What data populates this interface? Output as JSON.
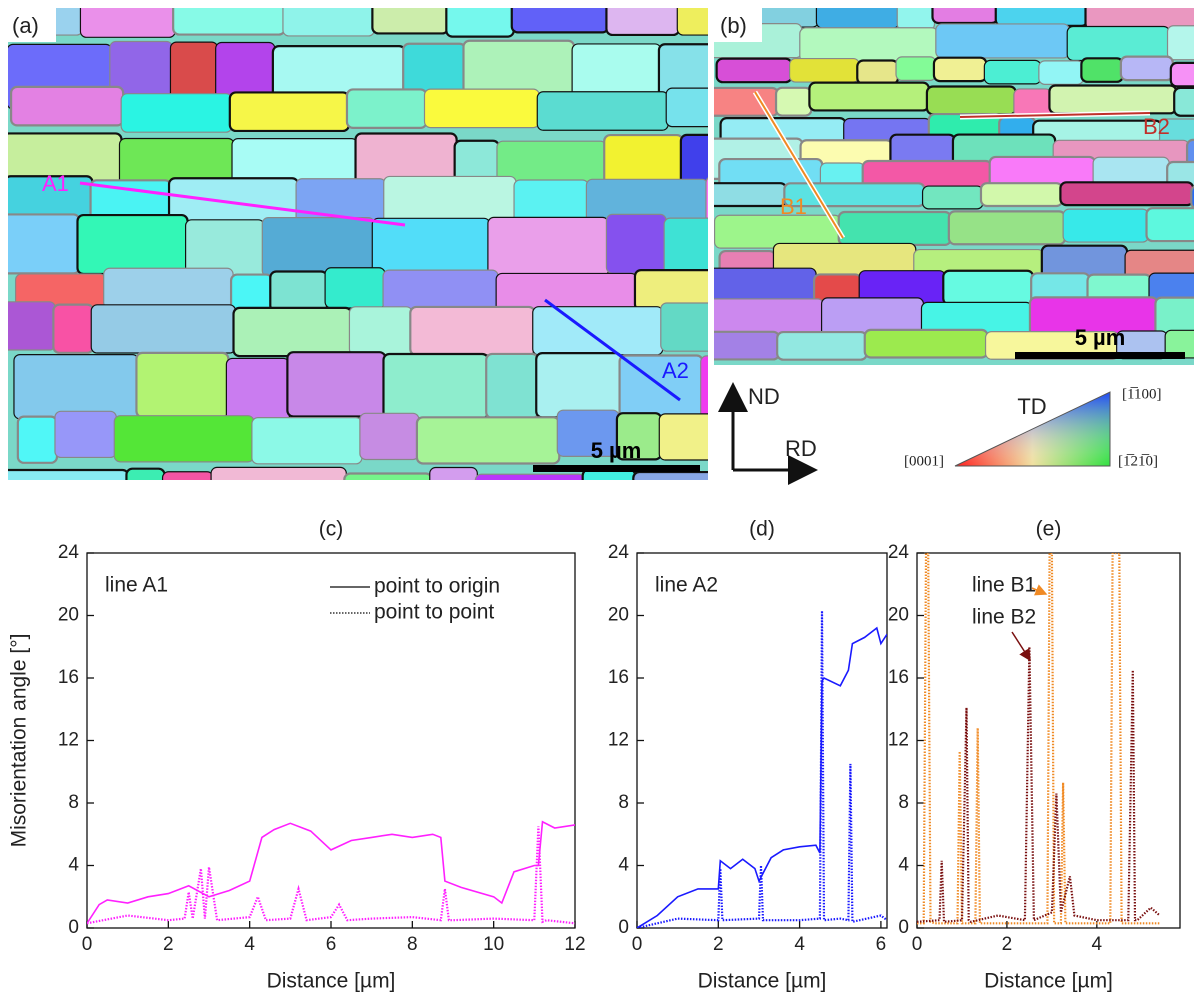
{
  "maps": {
    "a": {
      "label": "(a)",
      "lines": [
        "A1",
        "A2"
      ],
      "scale": "5 µm"
    },
    "b": {
      "label": "(b)",
      "lines": [
        "B1",
        "B2"
      ],
      "scale": "5 µm"
    },
    "directions": [
      "ND",
      "RD"
    ],
    "key": {
      "title": "TD",
      "corners": [
        "[0001]",
        "[1̅100]",
        "[1̅21̅0]"
      ]
    }
  },
  "chart_data": [
    {
      "type": "line",
      "title": "(c)",
      "x_label": "Distance [µm]",
      "y_label": "Misorientation angle [°]",
      "xlim": [
        0,
        12
      ],
      "xticks": [
        0,
        2,
        4,
        6,
        8,
        10,
        12
      ],
      "ylim": [
        0,
        24
      ],
      "yticks": [
        0,
        4,
        8,
        12,
        16,
        20,
        24
      ],
      "annotations": [
        "line A1"
      ],
      "legend": "upper right",
      "series": [
        {
          "name": "point to origin",
          "color": "#ff20ff",
          "line_style": "solid",
          "x": [
            0,
            0.3,
            0.5,
            1,
            1.5,
            2,
            2.5,
            3,
            3.5,
            4,
            4.3,
            4.6,
            5,
            5.5,
            6,
            6.5,
            7,
            7.5,
            8,
            8.5,
            8.7,
            8.8,
            9.2,
            10,
            10.2,
            10.5,
            11,
            11.1,
            11.2,
            11.5,
            12
          ],
          "values": [
            0.3,
            1.5,
            1.8,
            1.6,
            2.0,
            2.2,
            2.7,
            2.0,
            2.4,
            3.0,
            5.8,
            6.3,
            6.7,
            6.2,
            5.0,
            5.6,
            5.8,
            6.0,
            5.8,
            6.0,
            5.8,
            3.0,
            2.6,
            2.0,
            1.6,
            3.6,
            4.0,
            4.0,
            6.8,
            6.4,
            6.6
          ]
        },
        {
          "name": "point to point",
          "color": "#ff20ff",
          "line_style": "dotted",
          "x": [
            0,
            1,
            2,
            2.4,
            2.5,
            2.6,
            2.8,
            2.9,
            3.0,
            3.2,
            4,
            4.2,
            4.4,
            5,
            5.2,
            5.4,
            6,
            6.2,
            6.4,
            7,
            8,
            8.7,
            8.8,
            8.9,
            9,
            10,
            11,
            11.1,
            11.2,
            11.3,
            12
          ],
          "values": [
            0.3,
            0.8,
            0.5,
            0.6,
            2.3,
            0.6,
            3.8,
            0.6,
            3.9,
            0.5,
            0.7,
            2.0,
            0.5,
            0.6,
            2.5,
            0.5,
            0.7,
            1.5,
            0.5,
            0.6,
            0.7,
            0.5,
            2.5,
            0.5,
            0.5,
            0.6,
            0.5,
            6.5,
            0.4,
            0.5,
            0.3
          ]
        }
      ]
    },
    {
      "type": "line",
      "title": "(d)",
      "x_label": "Distance [µm]",
      "xlim": [
        0,
        6.15
      ],
      "xticks": [
        0,
        2,
        4,
        6
      ],
      "ylim": [
        0,
        24
      ],
      "yticks": [
        0,
        4,
        8,
        12,
        16,
        20,
        24
      ],
      "annotations": [
        "line A2"
      ],
      "series": [
        {
          "color": "#1a1aff",
          "line_style": "solid",
          "x": [
            0,
            0.5,
            1,
            1.5,
            2,
            2.05,
            2.3,
            2.6,
            2.9,
            3.0,
            3.3,
            3.6,
            4,
            4.4,
            4.5,
            4.55,
            4.6,
            5,
            5.2,
            5.3,
            5.6,
            5.9,
            6,
            6.15
          ],
          "values": [
            0,
            0.8,
            2.0,
            2.5,
            2.5,
            4.3,
            3.8,
            4.4,
            3.8,
            3.0,
            4.5,
            5.0,
            5.2,
            5.3,
            4.8,
            15.8,
            16.0,
            15.5,
            16.5,
            18.2,
            18.6,
            19.2,
            18.2,
            18.8
          ]
        },
        {
          "color": "#1a1aff",
          "line_style": "dotted",
          "x": [
            0,
            1,
            2,
            2.05,
            2.1,
            3,
            3.05,
            3.1,
            4,
            4.5,
            4.55,
            4.6,
            5,
            5.2,
            5.25,
            5.3,
            6,
            6.15
          ],
          "values": [
            0,
            0.6,
            0.5,
            3.8,
            0.5,
            0.6,
            4.0,
            0.5,
            0.5,
            0.6,
            20.3,
            0.5,
            0.6,
            0.5,
            10.5,
            0.4,
            0.8,
            0.5
          ]
        }
      ]
    },
    {
      "type": "line",
      "title": "(e)",
      "x_label": "Distance [µm]",
      "xlim": [
        0,
        5.85
      ],
      "xticks": [
        0,
        2,
        4
      ],
      "ylim": [
        0,
        24
      ],
      "yticks": [
        0,
        4,
        8,
        12,
        16,
        20,
        24
      ],
      "series": [
        {
          "name": "line B1",
          "color": "#f08a24",
          "line_style": "dotted",
          "x": [
            0,
            0.15,
            0.2,
            0.25,
            0.3,
            0.4,
            0.9,
            0.95,
            1.0,
            1.3,
            1.35,
            1.4,
            2.9,
            2.95,
            3.0,
            3.05,
            3.2,
            3.25,
            3.3,
            4.3,
            4.35,
            4.5,
            4.55,
            5.4
          ],
          "values": [
            0.3,
            0.3,
            24,
            24,
            0.4,
            0.3,
            0.3,
            11.3,
            0.3,
            0.3,
            12.8,
            0.3,
            0.3,
            24,
            24,
            0.3,
            0.3,
            9.3,
            0.3,
            0.3,
            24,
            24,
            0.3,
            0.3
          ]
        },
        {
          "name": "line B2",
          "color": "#7a1010",
          "line_style": "dotted",
          "x": [
            0,
            0.5,
            0.55,
            0.6,
            1.0,
            1.1,
            1.15,
            1.2,
            1.8,
            2.4,
            2.5,
            2.6,
            3.0,
            3.1,
            3.2,
            3.4,
            3.5,
            4.0,
            4.7,
            4.8,
            4.85,
            4.9,
            5.2,
            5.4
          ],
          "values": [
            0.4,
            0.5,
            4.3,
            0.4,
            0.5,
            14.1,
            0.5,
            0.4,
            0.8,
            0.5,
            18.0,
            0.5,
            1.0,
            8.6,
            1.0,
            3.3,
            0.8,
            0.5,
            0.5,
            16.5,
            0.5,
            0.5,
            1.3,
            0.8
          ]
        }
      ]
    }
  ]
}
